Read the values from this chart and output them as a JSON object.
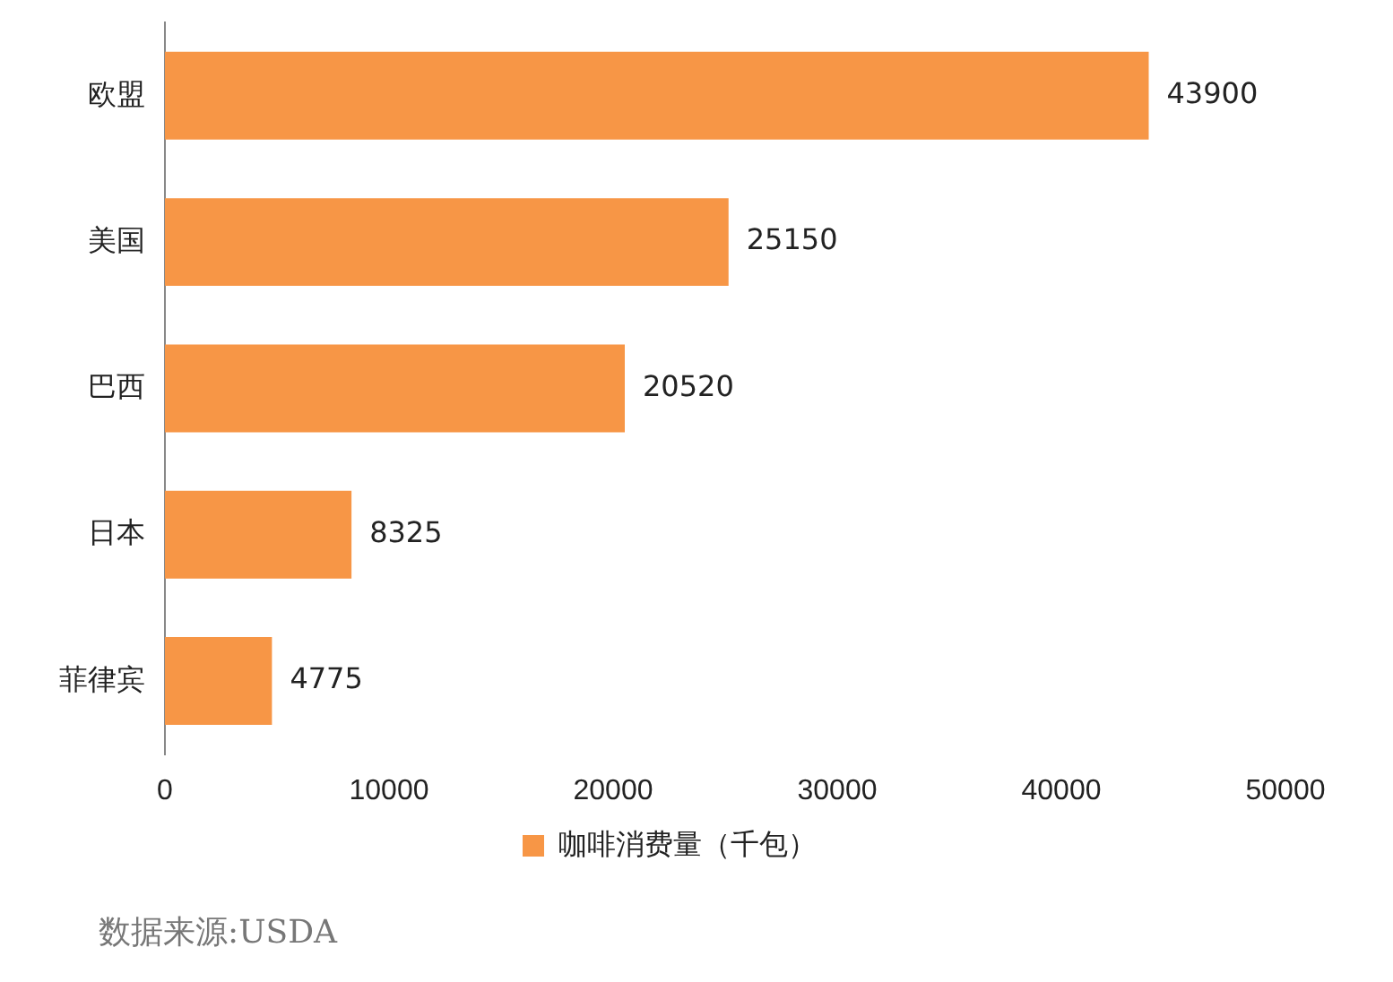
{
  "chart_data": {
    "type": "bar",
    "orientation": "horizontal",
    "categories": [
      "欧盟",
      "美国",
      "巴西",
      "日本",
      "菲律宾"
    ],
    "series": [
      {
        "name": "咖啡消费量（千包）",
        "color": "#f79646",
        "values": [
          43900,
          25150,
          20520,
          8325,
          4775
        ]
      }
    ],
    "xlim": [
      0,
      50000
    ],
    "xticks": [
      0,
      10000,
      20000,
      30000,
      40000,
      50000
    ],
    "grid": false,
    "legend": "bottom",
    "data_labels": true,
    "annotations": [
      "数据来源:USDA"
    ]
  }
}
